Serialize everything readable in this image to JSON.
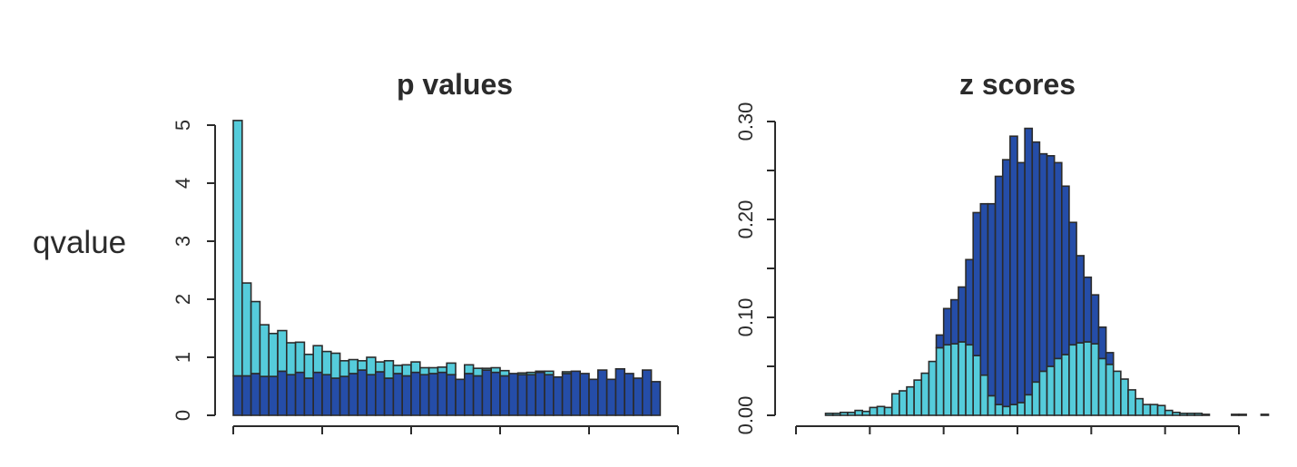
{
  "row_label": "qvalue",
  "colors": {
    "alt": "#254DA8",
    "null": "#55CCDB",
    "stroke": "#2B2B2B"
  },
  "chart_data": [
    {
      "type": "bar",
      "subtype": "stacked-histogram",
      "title": "p values",
      "xlim": [
        0,
        1
      ],
      "ylim": [
        0,
        5
      ],
      "yticks": [
        "0",
        "1",
        "2",
        "3",
        "4",
        "5"
      ],
      "xticks_shown_without_labels": [
        0,
        0.2,
        0.4,
        0.6,
        0.8,
        1.0
      ],
      "bin_start": 0,
      "bin_width": 0.02,
      "series": [
        {
          "color": "#254DA8",
          "values": [
            0.68,
            0.68,
            0.72,
            0.67,
            0.67,
            0.76,
            0.7,
            0.74,
            0.64,
            0.74,
            0.7,
            0.64,
            0.67,
            0.72,
            0.78,
            0.7,
            0.75,
            0.64,
            0.72,
            0.68,
            0.74,
            0.7,
            0.72,
            0.74,
            0.7,
            0.62,
            0.72,
            0.68,
            0.78,
            0.74,
            0.68,
            0.72,
            0.7,
            0.7,
            0.74,
            0.7,
            0.66,
            0.72,
            0.76,
            0.72,
            0.62,
            0.78,
            0.62,
            0.8,
            0.72,
            0.64,
            0.78,
            0.58
          ]
        },
        {
          "color": "#55CCDB",
          "values": [
            4.4,
            1.6,
            1.24,
            0.89,
            0.74,
            0.7,
            0.55,
            0.52,
            0.41,
            0.46,
            0.4,
            0.43,
            0.27,
            0.24,
            0.16,
            0.3,
            0.17,
            0.3,
            0.14,
            0.19,
            0.18,
            0.12,
            0.1,
            0.09,
            0.2,
            0.0,
            0.15,
            0.13,
            0.03,
            0.08,
            0.09,
            0.0,
            0.03,
            0.04,
            0.02,
            0.06,
            0.0,
            0.03,
            0.0,
            0.0,
            0.0,
            0.0,
            0.0,
            0.0,
            0.0,
            0.0,
            0.0,
            0.0
          ]
        }
      ]
    },
    {
      "type": "bar",
      "subtype": "stacked-histogram",
      "title": "z scores",
      "xlim": [
        -6,
        6
      ],
      "ylim": [
        0,
        0.3
      ],
      "yticks": [
        "0.00",
        "0.10",
        "0.20",
        "0.30"
      ],
      "yminor": [
        0.05,
        0.15,
        0.25
      ],
      "xticks_shown_without_labels": [
        -6,
        -4,
        -2,
        0,
        2,
        4,
        6
      ],
      "bin_start": -5.2,
      "bin_width": 0.2,
      "series": [
        {
          "color": "#55CCDB",
          "values": [
            0.002,
            0.002,
            0.003,
            0.003,
            0.005,
            0.004,
            0.008,
            0.009,
            0.008,
            0.022,
            0.025,
            0.029,
            0.036,
            0.043,
            0.055,
            0.069,
            0.072,
            0.073,
            0.075,
            0.072,
            0.061,
            0.041,
            0.02,
            0.011,
            0.009,
            0.011,
            0.013,
            0.021,
            0.034,
            0.045,
            0.05,
            0.058,
            0.062,
            0.072,
            0.074,
            0.075,
            0.073,
            0.058,
            0.052,
            0.045,
            0.037,
            0.026,
            0.017,
            0.011,
            0.011,
            0.01,
            0.005,
            0.003,
            0.002,
            0.002,
            0.002,
            0.001,
            0.0,
            0.0,
            0.0,
            0.001,
            0.001,
            0.0,
            0.0,
            0.001
          ]
        },
        {
          "color": "#254DA8",
          "values": [
            0.0,
            0.0,
            0.0,
            0.0,
            0.0,
            0.0,
            0.0,
            0.0,
            0.0,
            0.0,
            0.0,
            0.0,
            0.0,
            0.0,
            0.0,
            0.013,
            0.037,
            0.045,
            0.056,
            0.087,
            0.146,
            0.175,
            0.196,
            0.233,
            0.252,
            0.274,
            0.245,
            0.272,
            0.245,
            0.222,
            0.215,
            0.2,
            0.172,
            0.125,
            0.089,
            0.066,
            0.05,
            0.032,
            0.012,
            0.0,
            0.0,
            0.0,
            0.0,
            0.0,
            0.0,
            0.0,
            0.0,
            0.0,
            0.0,
            0.0,
            0.0,
            0.0,
            0.0,
            0.0,
            0.0,
            0.0,
            0.0,
            0.0,
            0.0,
            0.0
          ]
        }
      ]
    }
  ]
}
